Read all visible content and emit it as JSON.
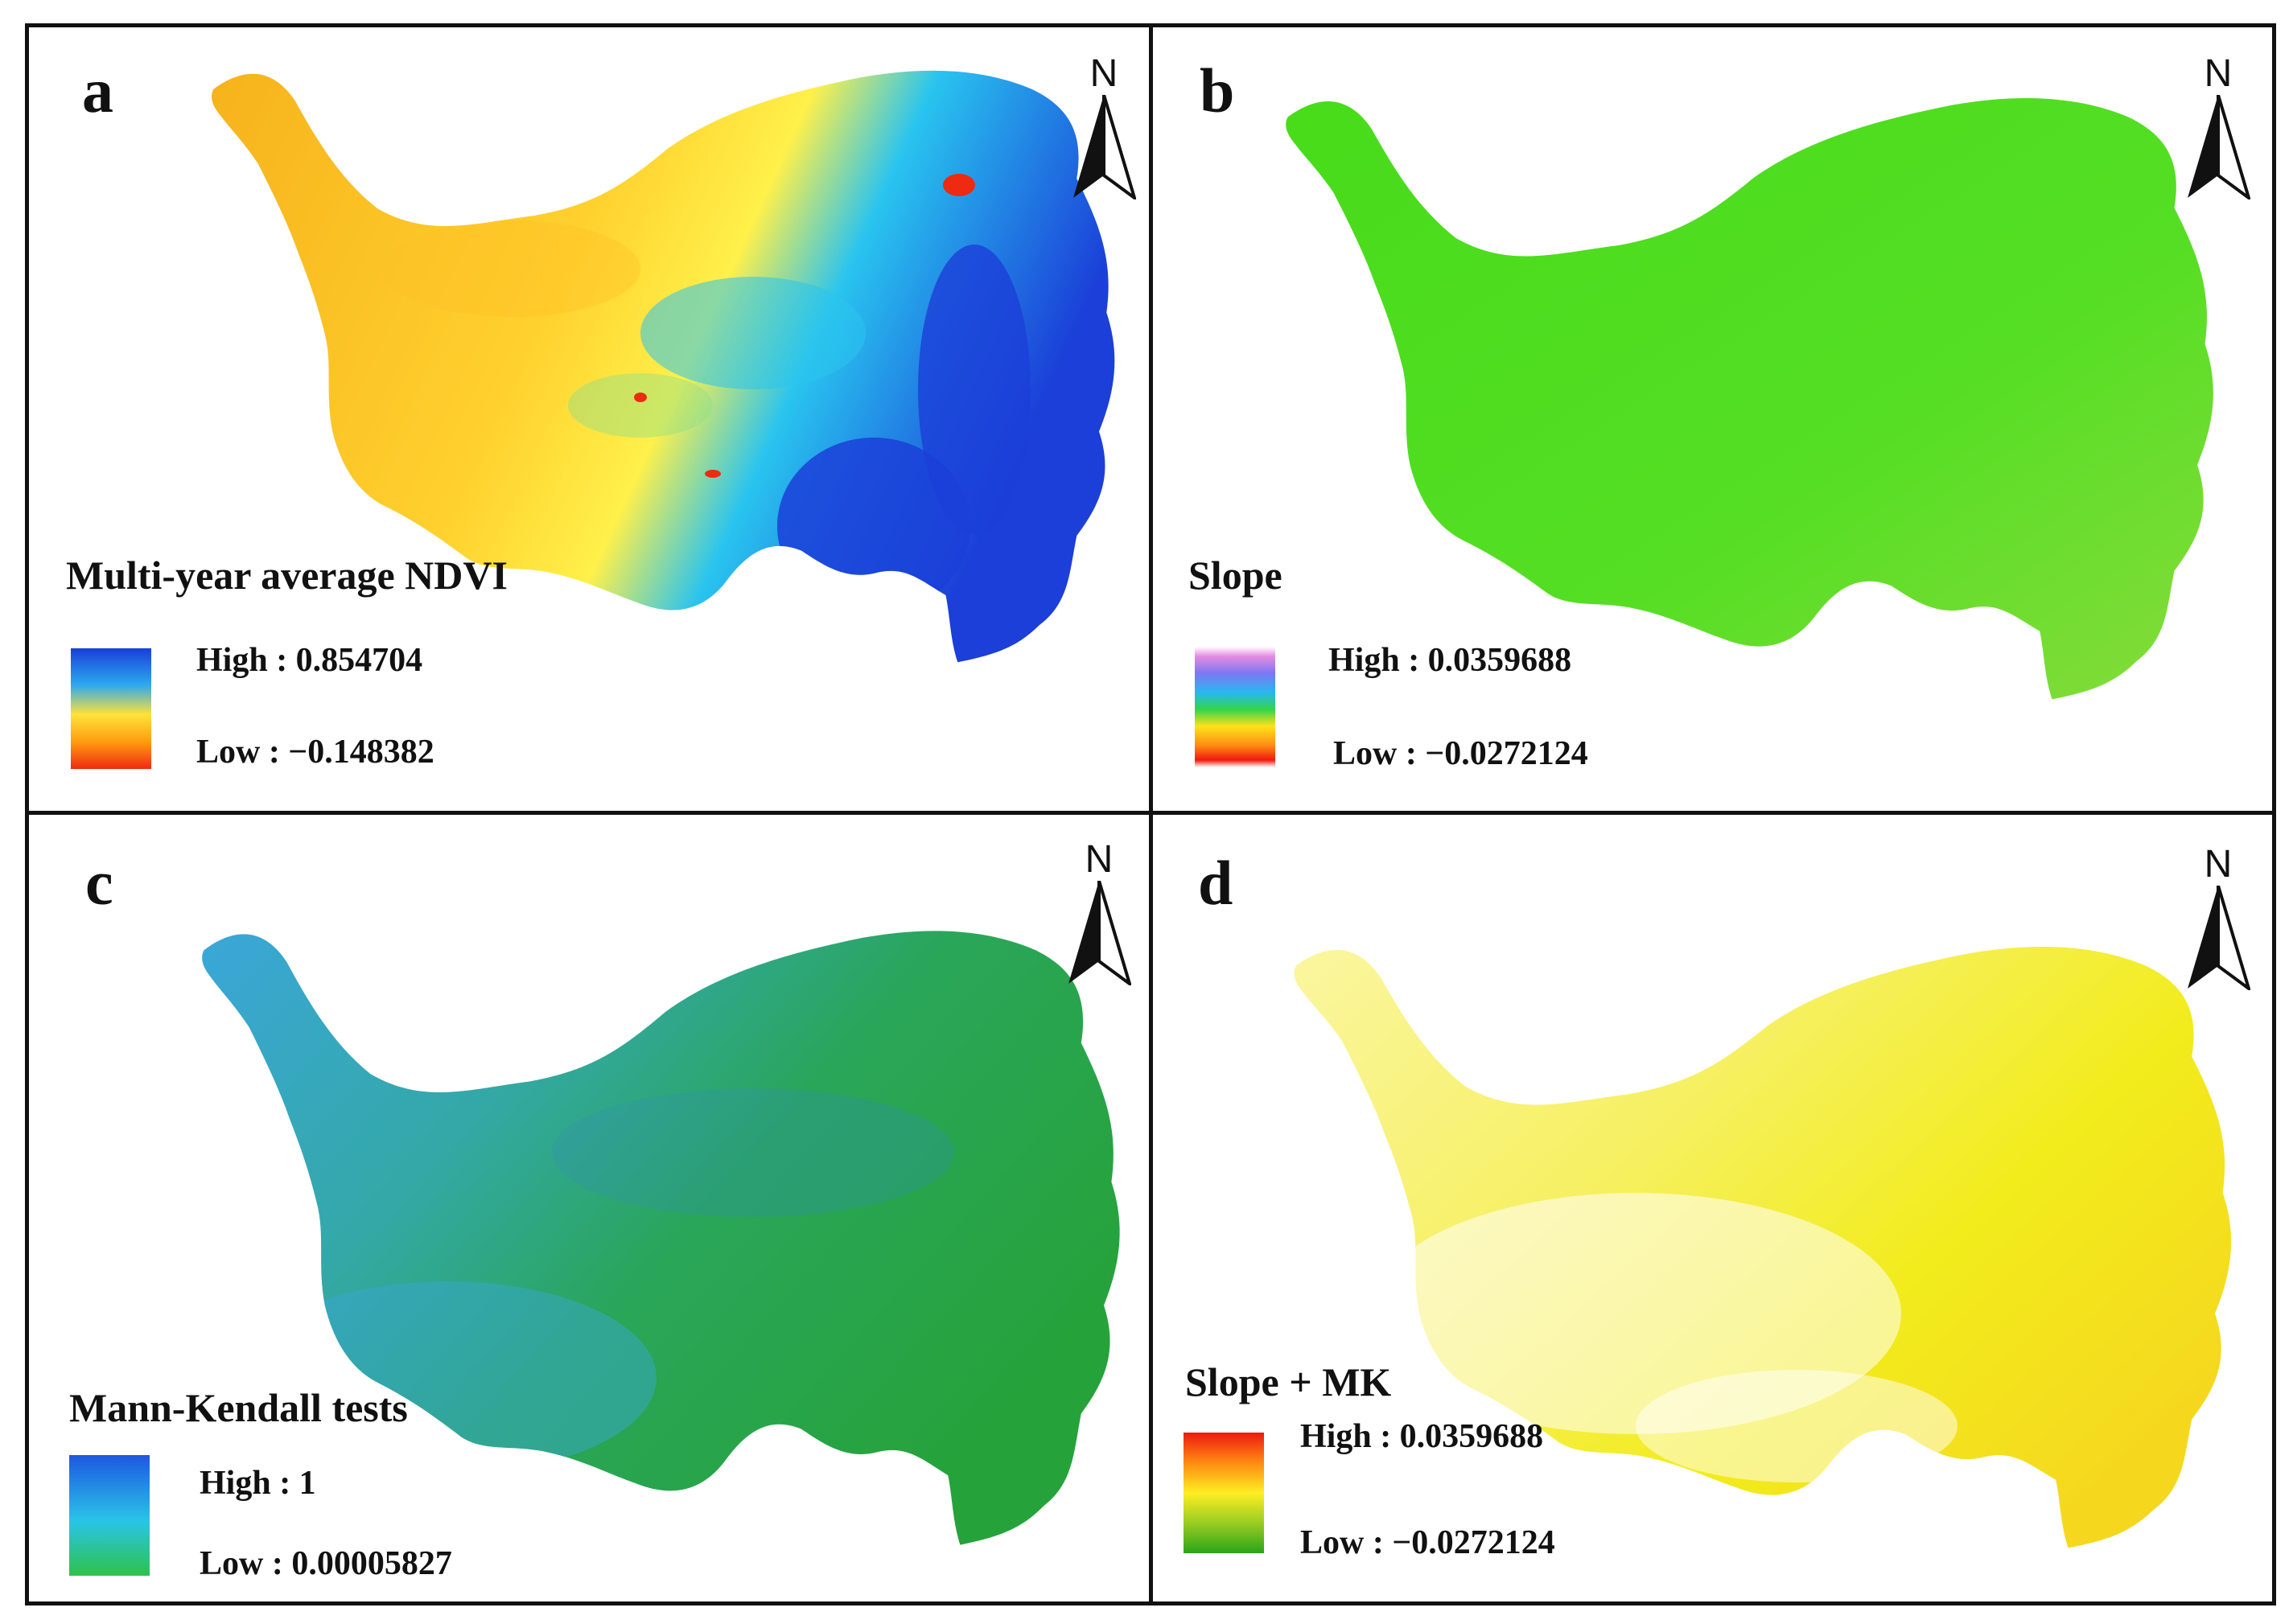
{
  "panels": [
    {
      "letter": "a",
      "title": "Multi-year average NDVI",
      "legend": {
        "high_label": "High : 0.854704",
        "low_label": "Low : −0.148382",
        "colors": [
          "#1a3fd8",
          "#2aa8f0",
          "#ffe23a",
          "#ff9a10",
          "#ee2a10"
        ]
      },
      "north_label": "N",
      "icons": [
        "north-arrow-icon"
      ]
    },
    {
      "letter": "b",
      "title": "Slope",
      "legend": {
        "high_label": "High : 0.0359688",
        "low_label": "Low : −0.0272124",
        "colors": [
          "#e58ce0",
          "#7d77f2",
          "#27b8f0",
          "#33d44a",
          "#ffe21a",
          "#ff8a12",
          "#ee1a10"
        ]
      },
      "north_label": "N",
      "icons": [
        "north-arrow-icon"
      ]
    },
    {
      "letter": "c",
      "title": "Mann-Kendall tests",
      "legend": {
        "high_label": "High : 1",
        "low_label": "Low : 0.00005827",
        "colors": [
          "#1d58e0",
          "#2ac4e8",
          "#2ec24a"
        ]
      },
      "north_label": "N",
      "icons": [
        "north-arrow-icon"
      ]
    },
    {
      "letter": "d",
      "title": "Slope + MK",
      "legend": {
        "high_label": "High : 0.0359688",
        "low_label": "Low : −0.0272124",
        "colors": [
          "#ee1a10",
          "#ff8a12",
          "#ffee22",
          "#99cc22",
          "#2aa418"
        ]
      },
      "north_label": "N",
      "icons": [
        "north-arrow-icon"
      ]
    }
  ],
  "colors": {
    "ndvi_fill": [
      "#f6b21c",
      "#ffd12e",
      "#fff04a",
      "#29c4ef",
      "#1b3fd8"
    ],
    "slope_fill": "#4fdc22",
    "mk_fill": [
      "#3aa7d9",
      "#27a43e"
    ],
    "slopemk_fill": "#f2ec1c",
    "frame": "#111111"
  }
}
